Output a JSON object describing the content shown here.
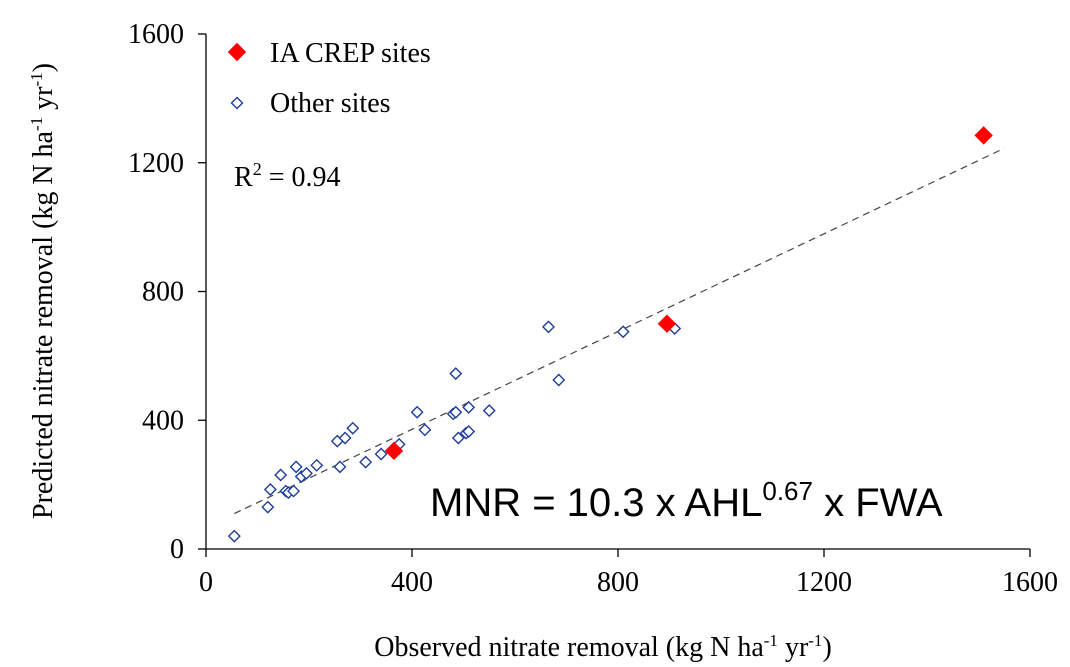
{
  "chart_data": {
    "type": "scatter",
    "xlabel": {
      "pre": "Observed nitrate removal (kg N ha",
      "sup1": "-1",
      "mid": " yr",
      "sup2": "-1",
      "post": ")"
    },
    "ylabel": {
      "pre": "Predicted nitrate removal (kg N ha",
      "sup1": "-1",
      "mid": " yr",
      "sup2": "-1",
      "post": ")"
    },
    "xlim": [
      0,
      1600
    ],
    "ylim": [
      0,
      1600
    ],
    "xticks": [
      "0",
      "400",
      "800",
      "1200",
      "1600"
    ],
    "yticks": [
      "0",
      "400",
      "800",
      "1200",
      "1600"
    ],
    "legend_position": "top-left",
    "grid": false,
    "r2_label": {
      "pre": "R",
      "sup": "2",
      "post": " = 0.94"
    },
    "equation": {
      "pre": "MNR = 10.3 x AHL",
      "sup": "0.67",
      "post": " x FWA"
    },
    "trendline": {
      "style": "dashed",
      "x": [
        55,
        1550
      ],
      "y": [
        110,
        1245
      ]
    },
    "series": [
      {
        "name": "IA CREP sites",
        "marker": "filled-diamond",
        "color": "#ff0000",
        "points": [
          {
            "x": 365,
            "y": 305
          },
          {
            "x": 895,
            "y": 700
          },
          {
            "x": 1510,
            "y": 1285
          }
        ]
      },
      {
        "name": "Other sites",
        "marker": "open-diamond",
        "color": "#1f3d99",
        "points": [
          {
            "x": 55,
            "y": 40
          },
          {
            "x": 120,
            "y": 130
          },
          {
            "x": 125,
            "y": 185
          },
          {
            "x": 145,
            "y": 230
          },
          {
            "x": 155,
            "y": 180
          },
          {
            "x": 160,
            "y": 175
          },
          {
            "x": 170,
            "y": 180
          },
          {
            "x": 175,
            "y": 255
          },
          {
            "x": 185,
            "y": 225
          },
          {
            "x": 195,
            "y": 235
          },
          {
            "x": 215,
            "y": 260
          },
          {
            "x": 255,
            "y": 335
          },
          {
            "x": 260,
            "y": 255
          },
          {
            "x": 270,
            "y": 345
          },
          {
            "x": 285,
            "y": 375
          },
          {
            "x": 310,
            "y": 270
          },
          {
            "x": 340,
            "y": 295
          },
          {
            "x": 375,
            "y": 325
          },
          {
            "x": 410,
            "y": 425
          },
          {
            "x": 425,
            "y": 370
          },
          {
            "x": 480,
            "y": 420
          },
          {
            "x": 485,
            "y": 425
          },
          {
            "x": 485,
            "y": 545
          },
          {
            "x": 490,
            "y": 345
          },
          {
            "x": 505,
            "y": 360
          },
          {
            "x": 510,
            "y": 440
          },
          {
            "x": 510,
            "y": 365
          },
          {
            "x": 550,
            "y": 430
          },
          {
            "x": 665,
            "y": 690
          },
          {
            "x": 685,
            "y": 525
          },
          {
            "x": 810,
            "y": 675
          },
          {
            "x": 910,
            "y": 685
          }
        ]
      }
    ]
  }
}
